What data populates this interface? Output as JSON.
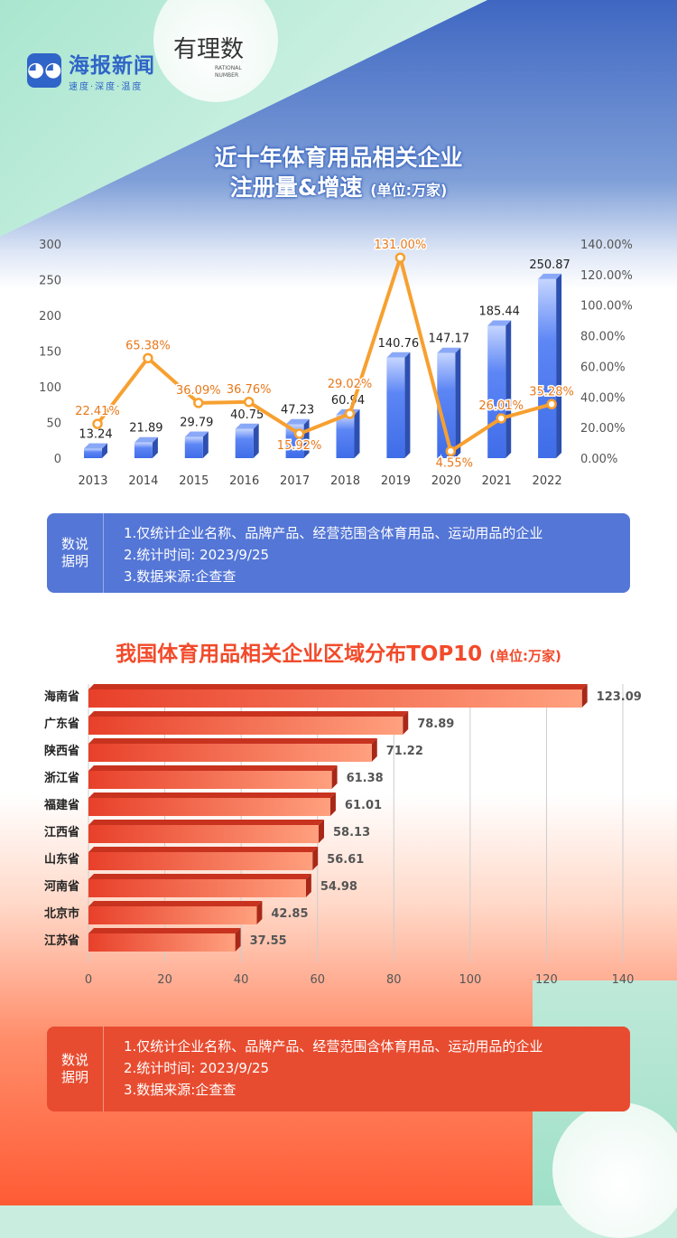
{
  "header": {
    "brand_name": "海报新闻",
    "brand_slogan": "速度·深度·温度",
    "column_logo": "有理数",
    "column_logo_en": "RATIONAL NUMBER"
  },
  "section1": {
    "title_line1": "近十年体育用品相关企业",
    "title_line2": "注册量&增速",
    "unit": "(单位:万家)"
  },
  "note1": {
    "label": "数说 据明",
    "lines": [
      "1.仅统计企业名称、品牌产品、经营范围含体育用品、运动用品的企业",
      "2.统计时间: 2023/9/25",
      "3.数据来源:企查查"
    ]
  },
  "section2": {
    "title": "我国体育用品相关企业区域分布TOP10",
    "unit": "(单位:万家)"
  },
  "note2": {
    "label": "数说 据明",
    "lines": [
      "1.仅统计企业名称、品牌产品、经营范围含体育用品、运动用品的企业",
      "2.统计时间: 2023/9/25",
      "3.数据来源:企查查"
    ]
  },
  "colors": {
    "bar_blue": "#4f7df0",
    "line_orange": "#f7a030",
    "bar_red": "#f0583a",
    "note_blue": "#5476d6",
    "note_red": "#e84c30"
  },
  "chart_data": [
    {
      "type": "bar+line",
      "categories": [
        "2013",
        "2014",
        "2015",
        "2016",
        "2017",
        "2018",
        "2019",
        "2020",
        "2021",
        "2022"
      ],
      "series": [
        {
          "type": "bar",
          "axis": "left",
          "values": [
            13.24,
            21.89,
            29.79,
            40.75,
            47.23,
            60.94,
            140.76,
            147.17,
            185.44,
            250.87
          ],
          "labels": [
            "13.24",
            "21.89",
            "29.79",
            "40.75",
            "47.23",
            "60.94",
            "140.76",
            "147.17",
            "185.44",
            "250.87"
          ]
        },
        {
          "type": "line",
          "axis": "right",
          "values": [
            22.41,
            65.38,
            36.09,
            36.76,
            15.92,
            29.02,
            131.0,
            4.55,
            26.01,
            35.28
          ],
          "labels": [
            "22.41%",
            "65.38%",
            "36.09%",
            "36.76%",
            "15.92%",
            "29.02%",
            "131.00%",
            "4.55%",
            "26.01%",
            "35.28%"
          ]
        }
      ],
      "ylim": [
        0,
        300
      ],
      "yticks": [
        "0",
        "50",
        "100",
        "150",
        "200",
        "250",
        "300"
      ],
      "y2lim": [
        0,
        140
      ],
      "y2ticks": [
        "0.00%",
        "20.00%",
        "40.00%",
        "60.00%",
        "80.00%",
        "100.00%",
        "120.00%",
        "140.00%"
      ],
      "grid": false
    },
    {
      "type": "bar",
      "orientation": "horizontal",
      "categories": [
        "海南省",
        "广东省",
        "陕西省",
        "浙江省",
        "福建省",
        "江西省",
        "山东省",
        "河南省",
        "北京市",
        "江苏省"
      ],
      "values": [
        123.09,
        78.89,
        71.22,
        61.38,
        61.01,
        58.13,
        56.61,
        54.98,
        42.85,
        37.55
      ],
      "labels": [
        "123.09",
        "78.89",
        "71.22",
        "61.38",
        "61.01",
        "58.13",
        "56.61",
        "54.98",
        "42.85",
        "37.55"
      ],
      "xlim": [
        0,
        140
      ],
      "xticks": [
        "0",
        "20",
        "40",
        "60",
        "80",
        "100",
        "120",
        "140"
      ],
      "grid": true
    }
  ]
}
